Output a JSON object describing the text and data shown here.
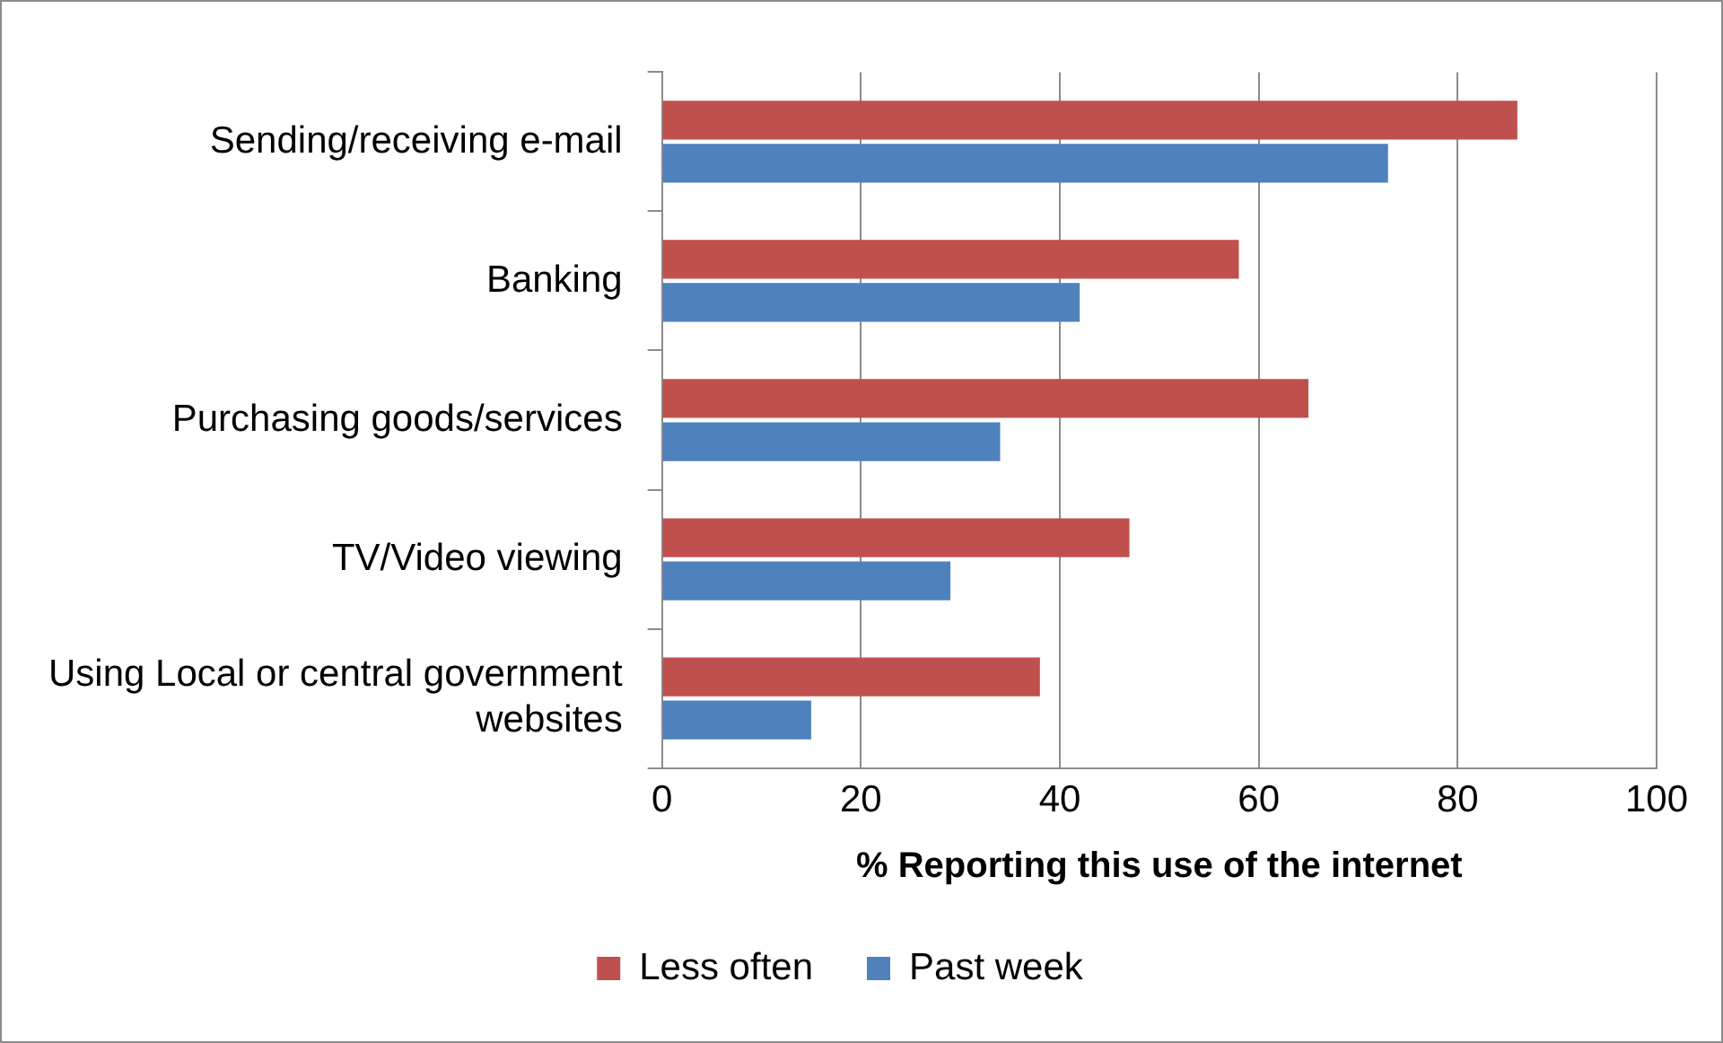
{
  "chart_data": {
    "type": "bar",
    "orientation": "horizontal",
    "xlabel": "% Reporting this use of the internet",
    "categories": [
      "Sending/receiving e-mail",
      "Banking",
      "Purchasing goods/services",
      "TV/Video viewing",
      "Using Local or central government websites"
    ],
    "series": [
      {
        "name": "Less often",
        "color": "#c0504d",
        "values": [
          86,
          58,
          65,
          47,
          38
        ]
      },
      {
        "name": "Past week",
        "color": "#4f81bd",
        "values": [
          73,
          42,
          34,
          29,
          15
        ]
      }
    ],
    "xlim": [
      0,
      100
    ],
    "xticks": [
      0,
      20,
      40,
      60,
      80,
      100
    ],
    "grid": "x",
    "legend": "bottom"
  }
}
